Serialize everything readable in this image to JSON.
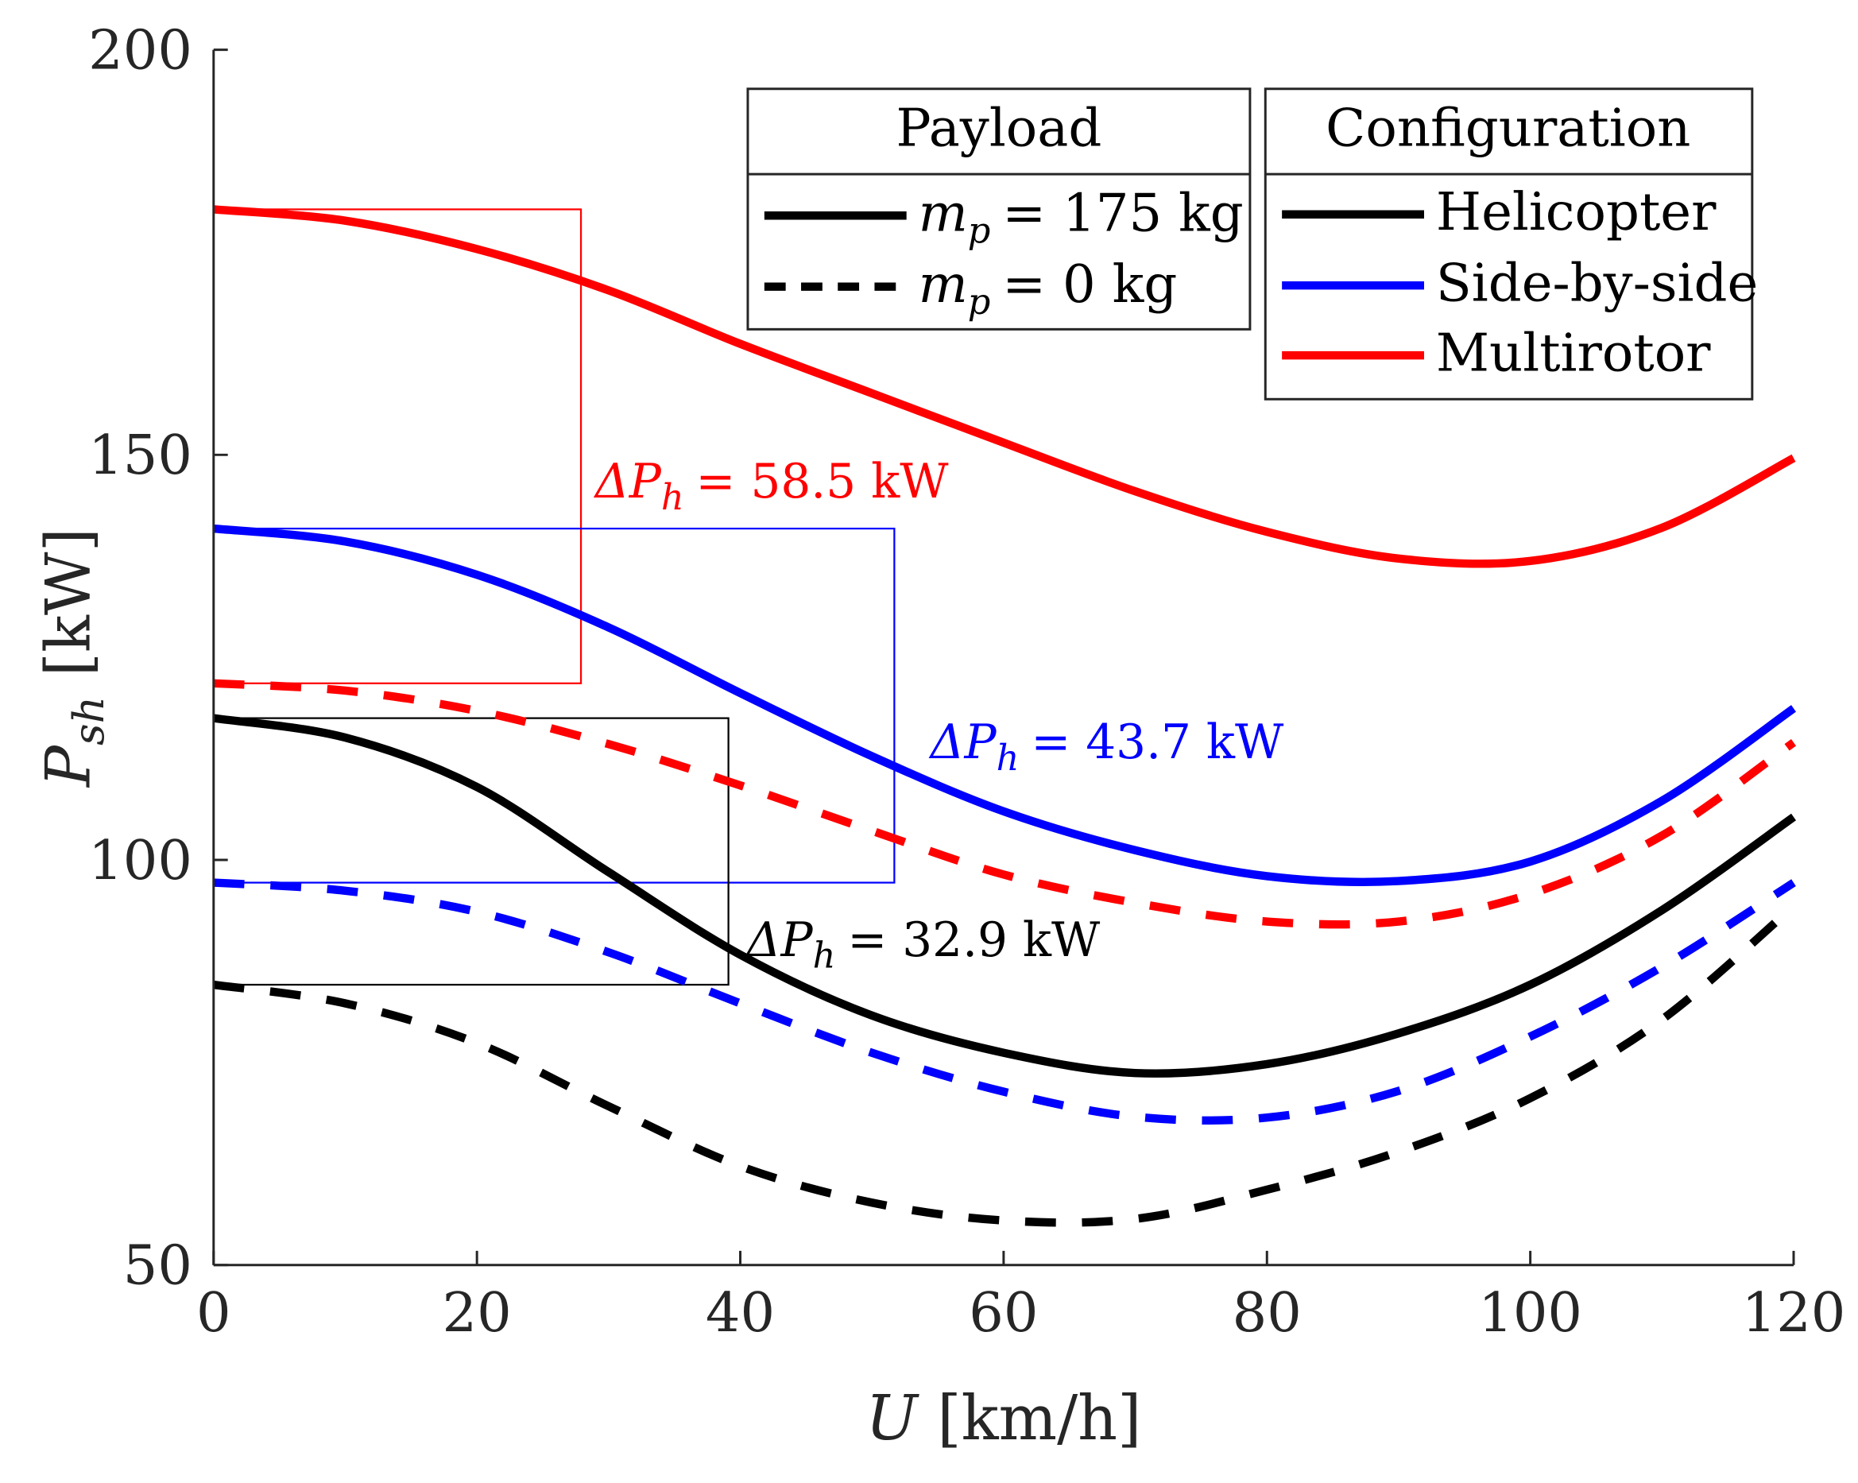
{
  "chart_data": {
    "type": "line",
    "xlabel": {
      "symbol": "U",
      "unit": "[km/h]"
    },
    "ylabel": {
      "symbol": "P",
      "sub": "sh",
      "unit": "[kW]"
    },
    "xlim": [
      0,
      120
    ],
    "ylim": [
      50,
      200
    ],
    "xticks": [
      "0",
      "20",
      "40",
      "60",
      "80",
      "100",
      "120"
    ],
    "yticks": [
      "50",
      "100",
      "150",
      "200"
    ],
    "grid": false,
    "x": [
      0,
      10,
      20,
      30,
      40,
      50,
      60,
      70,
      80,
      90,
      100,
      110,
      120
    ],
    "series": [
      {
        "name": "Multirotor, m_p = 175 kg",
        "config": "Multirotor",
        "payload": "175 kg",
        "color": "#ff0000",
        "dashed": false,
        "values": [
          180.3,
          178.9,
          175.4,
          170.3,
          163.7,
          157.6,
          151.5,
          145.5,
          140.5,
          137.2,
          136.9,
          141.0,
          149.6
        ]
      },
      {
        "name": "Multirotor, m_p = 0 kg",
        "config": "Multirotor",
        "payload": "0 kg",
        "color": "#ff0000",
        "dashed": true,
        "values": [
          121.8,
          120.9,
          118.4,
          114.3,
          109.2,
          103.6,
          98.2,
          94.7,
          92.4,
          92.4,
          95.8,
          103.0,
          114.5
        ]
      },
      {
        "name": "Side-by-side, m_p = 175 kg",
        "config": "Side-by-side",
        "payload": "175 kg",
        "color": "#0000ff",
        "dashed": false,
        "values": [
          140.9,
          139.3,
          135.2,
          128.7,
          120.6,
          112.8,
          106.0,
          101.2,
          98.0,
          97.4,
          99.8,
          107.3,
          118.7
        ]
      },
      {
        "name": "Side-by-side, m_p = 0 kg",
        "config": "Side-by-side",
        "payload": "0 kg",
        "color": "#0000ff",
        "dashed": true,
        "values": [
          97.2,
          96.2,
          93.6,
          88.6,
          82.3,
          76.2,
          71.4,
          68.3,
          68.2,
          71.5,
          78.2,
          86.8,
          97.2
        ]
      },
      {
        "name": "Helicopter, m_p = 175 kg",
        "config": "Helicopter",
        "payload": "175 kg",
        "color": "#000000",
        "dashed": false,
        "values": [
          117.5,
          115.1,
          109.0,
          98.5,
          88.3,
          80.8,
          76.2,
          73.7,
          74.8,
          78.6,
          84.6,
          93.8,
          105.3
        ]
      },
      {
        "name": "Helicopter, m_p = 0 kg",
        "config": "Helicopter",
        "payload": "0 kg",
        "color": "#000000",
        "dashed": true,
        "values": [
          84.6,
          82.3,
          77.4,
          69.6,
          62.2,
          57.7,
          55.5,
          55.7,
          59.3,
          64.0,
          70.6,
          80.3,
          94.3
        ]
      }
    ],
    "annotations": [
      {
        "symbol": "ΔP",
        "sub": "h",
        "text": "= 58.5 kW",
        "color": "#ff0000",
        "box": {
          "u_max": 27.9,
          "p_low": 121.8,
          "p_high": 180.3
        }
      },
      {
        "symbol": "ΔP",
        "sub": "h",
        "text": "= 43.7 kW",
        "color": "#0000ff",
        "box": {
          "u_max": 51.7,
          "p_low": 97.2,
          "p_high": 140.9
        }
      },
      {
        "symbol": "ΔP",
        "sub": "h",
        "text": "= 32.9 kW",
        "color": "#000000",
        "box": {
          "u_max": 39.1,
          "p_low": 84.6,
          "p_high": 117.5
        }
      }
    ],
    "legend_payload": {
      "title": "Payload",
      "placement": "top-right",
      "entries": [
        {
          "symbol": "m",
          "sub": "p",
          "text": "= 175 kg",
          "dashed": false
        },
        {
          "symbol": "m",
          "sub": "p",
          "text": "= 0 kg",
          "dashed": true
        }
      ]
    },
    "legend_config": {
      "title": "Configuration",
      "placement": "top-right",
      "entries": [
        {
          "label": "Helicopter",
          "color": "#000000"
        },
        {
          "label": "Side-by-side",
          "color": "#0000ff"
        },
        {
          "label": "Multirotor",
          "color": "#ff0000"
        }
      ]
    }
  }
}
